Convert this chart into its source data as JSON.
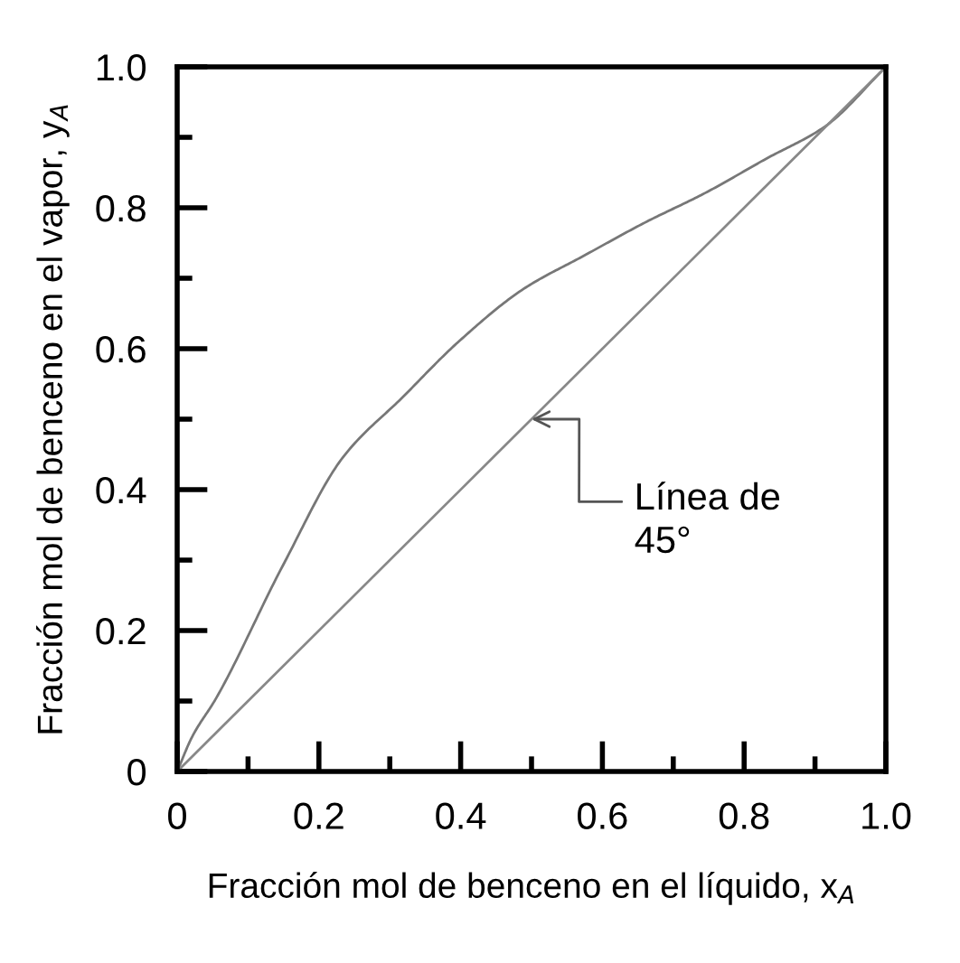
{
  "chart_data": {
    "type": "line",
    "xlabel": "Fracción mol de benceno en el líquido, x$_{A}$",
    "ylabel": "Fracción mol de benceno en el vapor, y$_{A}$",
    "series": [
      {
        "color": "#777777",
        "x": [
          0,
          0.021,
          0.055,
          0.149,
          0.234,
          0.319,
          0.396,
          0.489,
          0.574,
          0.66,
          0.745,
          0.83,
          0.915,
          1
        ],
        "values": [
          0,
          0.049,
          0.104,
          0.292,
          0.446,
          0.532,
          0.609,
          0.685,
          0.732,
          0.779,
          0.821,
          0.869,
          0.916,
          1
        ]
      },
      {
        "color": "#888888",
        "x": [
          0,
          1
        ],
        "values": [
          0,
          1
        ]
      }
    ],
    "annotations": [
      {
        "text": "Línea de\n45°",
        "x": 0.5,
        "y": 0.5
      }
    ],
    "xlim": [
      0,
      1.0
    ],
    "ylim": [
      0,
      1.0
    ],
    "xticks": [
      0,
      {
        "value": 0.1,
        "label": null
      },
      0.2,
      {
        "value": 0.3,
        "label": null
      },
      0.4,
      {
        "value": 0.5,
        "label": null
      },
      0.6,
      {
        "value": 0.7,
        "label": null
      },
      0.8,
      {
        "value": 0.9,
        "label": null
      },
      {
        "value": 1.0,
        "label": "1.0"
      }
    ],
    "yticks": [
      0,
      {
        "value": 0.1,
        "label": null
      },
      0.2,
      {
        "value": 0.3,
        "label": null
      },
      0.4,
      {
        "value": 0.5,
        "label": null
      },
      0.6,
      {
        "value": 0.7,
        "label": null
      },
      0.8,
      {
        "value": 0.9,
        "label": null
      },
      {
        "value": 1.0,
        "label": "1.0"
      }
    ],
    "grid": false,
    "legend": false,
    "marker": "none",
    "line_style": "solid"
  }
}
